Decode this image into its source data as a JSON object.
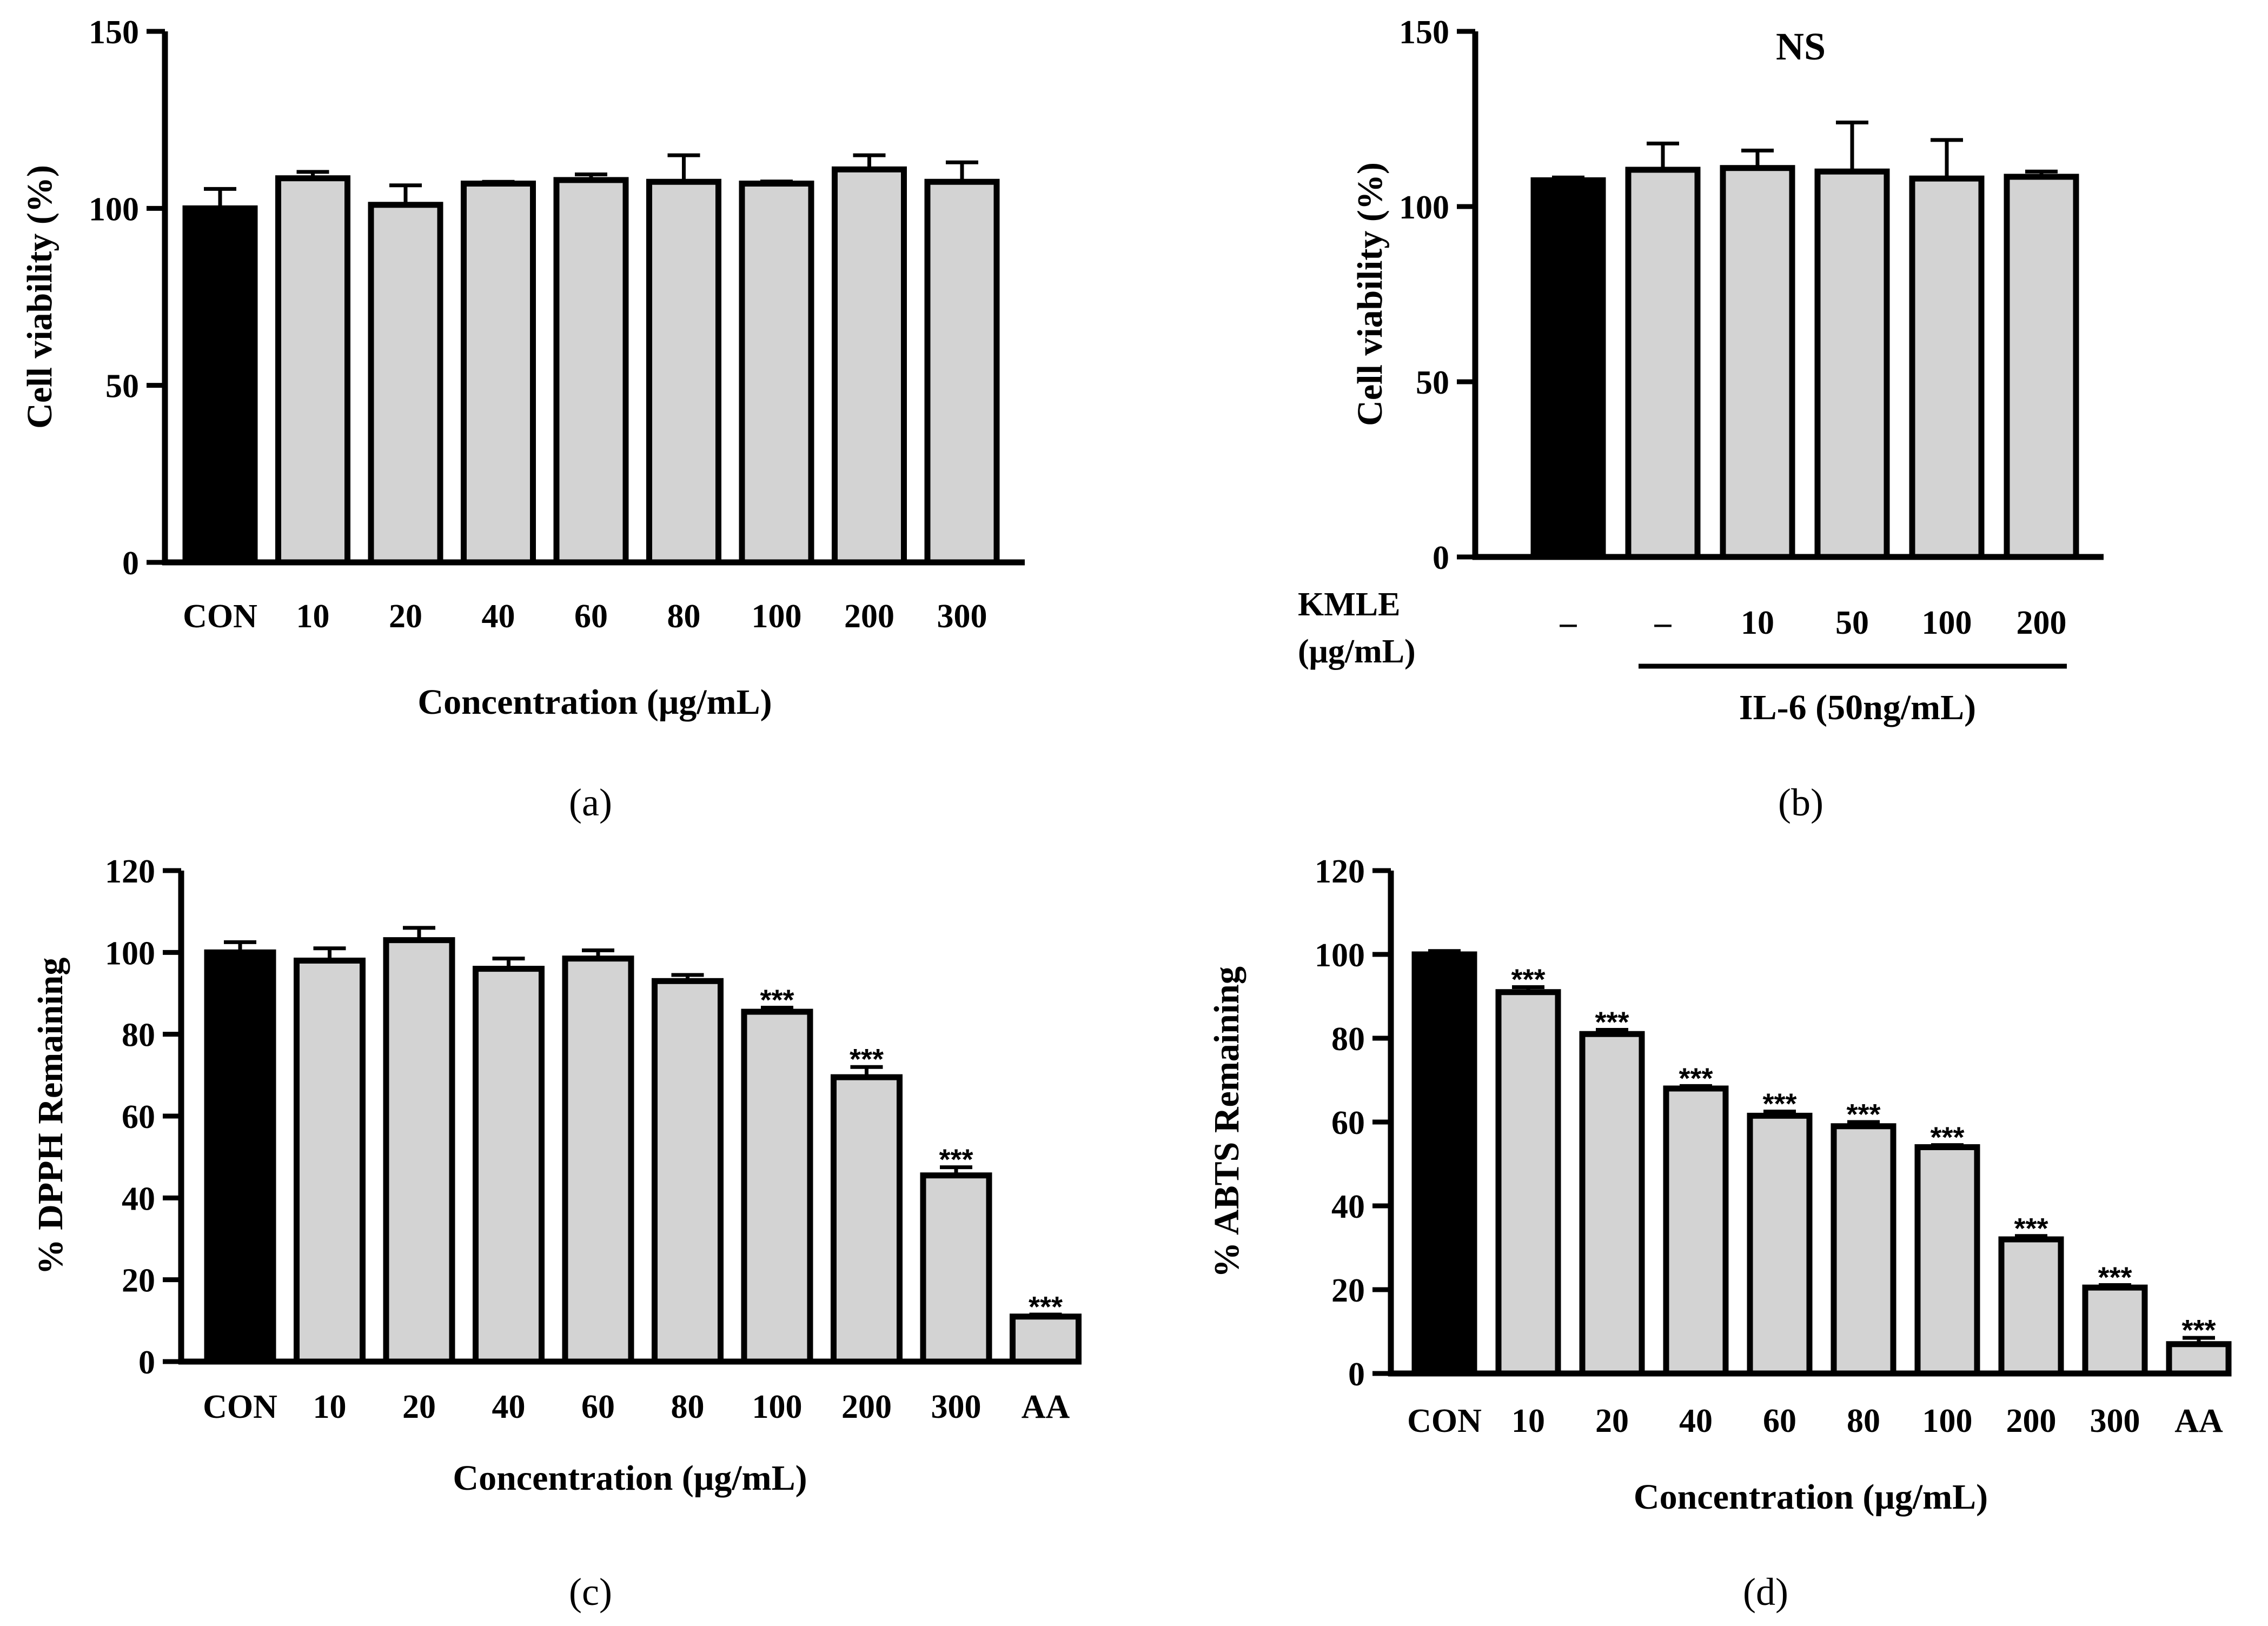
{
  "chart_data": [
    {
      "id": "a",
      "type": "bar",
      "panel_label": "(a)",
      "title": "",
      "ylabel": "Cell viability (%)",
      "xlabel": "Concentration (μg/mL)",
      "ylim": [
        0,
        150
      ],
      "yticks": [
        "0",
        "50",
        "100",
        "150"
      ],
      "categories": [
        "CON",
        "10",
        "20",
        "40",
        "60",
        "80",
        "100",
        "200",
        "300"
      ],
      "values": [
        100,
        108.5,
        101,
        107,
        108,
        107.5,
        107,
        111,
        107.5
      ],
      "errors": [
        5.5,
        1.8,
        5.5,
        0.5,
        1.6,
        7.5,
        0.6,
        4,
        5.5
      ],
      "significance": [
        "",
        "",
        "",
        "",
        "",
        "",
        "",
        "",
        ""
      ],
      "bar_colors": [
        "#000000",
        "#d3d3d3",
        "#d3d3d3",
        "#d3d3d3",
        "#d3d3d3",
        "#d3d3d3",
        "#d3d3d3",
        "#d3d3d3",
        "#d3d3d3"
      ]
    },
    {
      "id": "b",
      "type": "bar",
      "panel_label": "(b)",
      "title": "",
      "annotation": "NS",
      "ylabel": "Cell viability (%)",
      "xlabel": "",
      "ylim": [
        0,
        150
      ],
      "yticks": [
        "0",
        "50",
        "100",
        "150"
      ],
      "categories": [
        "–",
        "–",
        "10",
        "50",
        "100",
        "200"
      ],
      "values": [
        107.5,
        110.5,
        111,
        110,
        108,
        108.5
      ],
      "errors": [
        0.8,
        7.5,
        5,
        14,
        11,
        1.5
      ],
      "significance": [
        "",
        "",
        "",
        "",
        "",
        ""
      ],
      "bar_colors": [
        "#000000",
        "#d3d3d3",
        "#d3d3d3",
        "#d3d3d3",
        "#d3d3d3",
        "#d3d3d3"
      ],
      "row_label_line1": "KMLE",
      "row_label_line2": "(μg/mL)",
      "group_label": "IL-6 (50ng/mL)"
    },
    {
      "id": "c",
      "type": "bar",
      "panel_label": "(c)",
      "title": "",
      "ylabel": "% DPPH Remaining",
      "xlabel": "Concentration (μg/mL)",
      "ylim": [
        0,
        120
      ],
      "yticks": [
        "0",
        "20",
        "40",
        "60",
        "80",
        "100",
        "120"
      ],
      "categories": [
        "CON",
        "10",
        "20",
        "40",
        "60",
        "80",
        "100",
        "200",
        "300",
        "AA"
      ],
      "values": [
        100,
        98,
        103,
        96,
        98.5,
        93,
        85.5,
        69.5,
        45.5,
        11
      ],
      "errors": [
        2.5,
        3,
        3,
        2.5,
        2,
        1.5,
        1,
        2.5,
        2,
        0.5
      ],
      "significance": [
        "",
        "",
        "",
        "",
        "",
        "",
        "***",
        "***",
        "***",
        "***"
      ],
      "bar_colors": [
        "#000000",
        "#d3d3d3",
        "#d3d3d3",
        "#d3d3d3",
        "#d3d3d3",
        "#d3d3d3",
        "#d3d3d3",
        "#d3d3d3",
        "#d3d3d3",
        "#d3d3d3"
      ]
    },
    {
      "id": "d",
      "type": "bar",
      "panel_label": "(d)",
      "title": "",
      "ylabel": "% ABTS Remaining",
      "xlabel": "Concentration (μg/mL)",
      "ylim": [
        0,
        120
      ],
      "yticks": [
        "0",
        "20",
        "40",
        "60",
        "80",
        "100",
        "120"
      ],
      "categories": [
        "CON",
        "10",
        "20",
        "40",
        "60",
        "80",
        "100",
        "200",
        "300",
        "AA"
      ],
      "values": [
        100,
        91,
        81,
        68,
        61.5,
        59,
        54,
        32,
        20.5,
        7
      ],
      "errors": [
        0.8,
        1.2,
        1,
        0.6,
        1,
        1,
        0.5,
        0.8,
        0.6,
        1.5
      ],
      "significance": [
        "",
        "***",
        "***",
        "***",
        "***",
        "***",
        "***",
        "***",
        "***",
        "***"
      ],
      "bar_colors": [
        "#000000",
        "#d3d3d3",
        "#d3d3d3",
        "#d3d3d3",
        "#d3d3d3",
        "#d3d3d3",
        "#d3d3d3",
        "#d3d3d3",
        "#d3d3d3",
        "#d3d3d3"
      ]
    }
  ]
}
